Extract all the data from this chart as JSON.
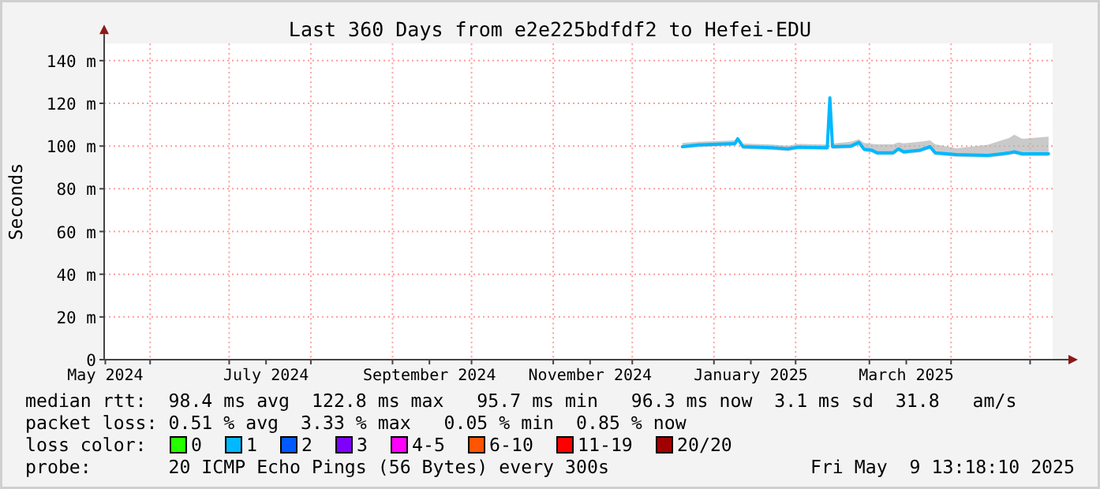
{
  "chart_data": {
    "type": "line",
    "title": "Last 360 Days from e2e225bdfdf2 to Hefei-EDU",
    "ylabel": "Seconds",
    "xlim": [
      "2024-05-14T13:18",
      "2025-05-09T13:18"
    ],
    "xticks": [
      {
        "value": "2024-05-15",
        "label": "May 2024"
      },
      {
        "value": "2024-06-01",
        "label": null
      },
      {
        "value": "2024-07-01",
        "label": null
      },
      {
        "value": "2024-07-15",
        "label": "July 2024"
      },
      {
        "value": "2024-08-01",
        "label": null
      },
      {
        "value": "2024-09-01",
        "label": null
      },
      {
        "value": "2024-09-15",
        "label": "September 2024"
      },
      {
        "value": "2024-10-01",
        "label": null
      },
      {
        "value": "2024-11-01",
        "label": null
      },
      {
        "value": "2024-11-15",
        "label": "November 2024"
      },
      {
        "value": "2024-12-01",
        "label": null
      },
      {
        "value": "2025-01-01",
        "label": null
      },
      {
        "value": "2025-01-15",
        "label": "January 2025"
      },
      {
        "value": "2025-02-01",
        "label": null
      },
      {
        "value": "2025-03-01",
        "label": null
      },
      {
        "value": "2025-03-15",
        "label": "March 2025"
      },
      {
        "value": "2025-04-01",
        "label": null
      },
      {
        "value": "2025-05-01",
        "label": null
      }
    ],
    "ylim": [
      0,
      148
    ],
    "yticks": [
      {
        "value": 0,
        "label": "0"
      },
      {
        "value": 20,
        "label": "20 m"
      },
      {
        "value": 40,
        "label": "40 m"
      },
      {
        "value": 60,
        "label": "60 m"
      },
      {
        "value": 80,
        "label": "80 m"
      },
      {
        "value": 100,
        "label": "100 m"
      },
      {
        "value": 120,
        "label": "120 m"
      },
      {
        "value": 140,
        "label": "140 m"
      }
    ],
    "grid": true,
    "series": [
      {
        "color": "#00b8ff",
        "x": [
          "2024-12-20",
          "2024-12-26",
          "2025-01-09",
          "2025-01-10",
          "2025-01-12",
          "2025-01-23",
          "2025-01-29",
          "2025-02-02",
          "2025-02-13",
          "2025-02-14",
          "2025-02-15",
          "2025-02-22",
          "2025-02-25",
          "2025-02-27",
          "2025-03-02",
          "2025-03-04",
          "2025-03-10",
          "2025-03-12",
          "2025-03-14",
          "2025-03-20",
          "2025-03-24",
          "2025-03-26",
          "2025-04-03",
          "2025-04-15",
          "2025-04-23",
          "2025-04-25",
          "2025-04-28",
          "2025-05-08"
        ],
        "values": [
          99.7,
          100.5,
          101.2,
          103.4,
          99.7,
          99.2,
          98.7,
          99.5,
          99.2,
          122.6,
          99.7,
          100,
          101.7,
          98.5,
          98,
          96.8,
          96.8,
          98.7,
          97.3,
          98,
          99.7,
          96.8,
          96,
          95.6,
          96.8,
          97.3,
          96.4,
          96.4
        ],
        "lower": [
          99,
          99.5,
          100.2,
          102.4,
          98.7,
          98.2,
          97.7,
          98.5,
          98.2,
          121.6,
          98.7,
          99,
          100.7,
          97.5,
          97,
          95.8,
          95.8,
          97.7,
          96.3,
          97,
          98.7,
          95.8,
          95,
          94.6,
          95.8,
          96.3,
          95.4,
          95.4
        ],
        "upper": [
          101.5,
          102,
          102.7,
          104.5,
          101.2,
          100.7,
          100.2,
          101,
          100.7,
          123.6,
          101.2,
          102,
          103.2,
          101.5,
          101,
          100.8,
          100.8,
          101.7,
          101.3,
          102,
          102.7,
          100.8,
          99,
          100.6,
          103.8,
          105.3,
          103.4,
          104.4
        ]
      }
    ],
    "annotations": [
      "median rtt:  98.4 ms avg  122.8 ms max   95.7 ms min   96.3 ms now  3.1 ms sd  31.8   am/s",
      "packet loss: 0.51 % avg  3.33 % max   0.05 % min  0.85 % now",
      "loss color:",
      "0",
      "1",
      "2",
      "3",
      "4-5",
      "6-10",
      "11-19",
      "20/20",
      "probe:       20 ICMP Echo Pings (56 Bytes) every 300s",
      "Fri May  9 13:18:10 2025"
    ]
  }
}
